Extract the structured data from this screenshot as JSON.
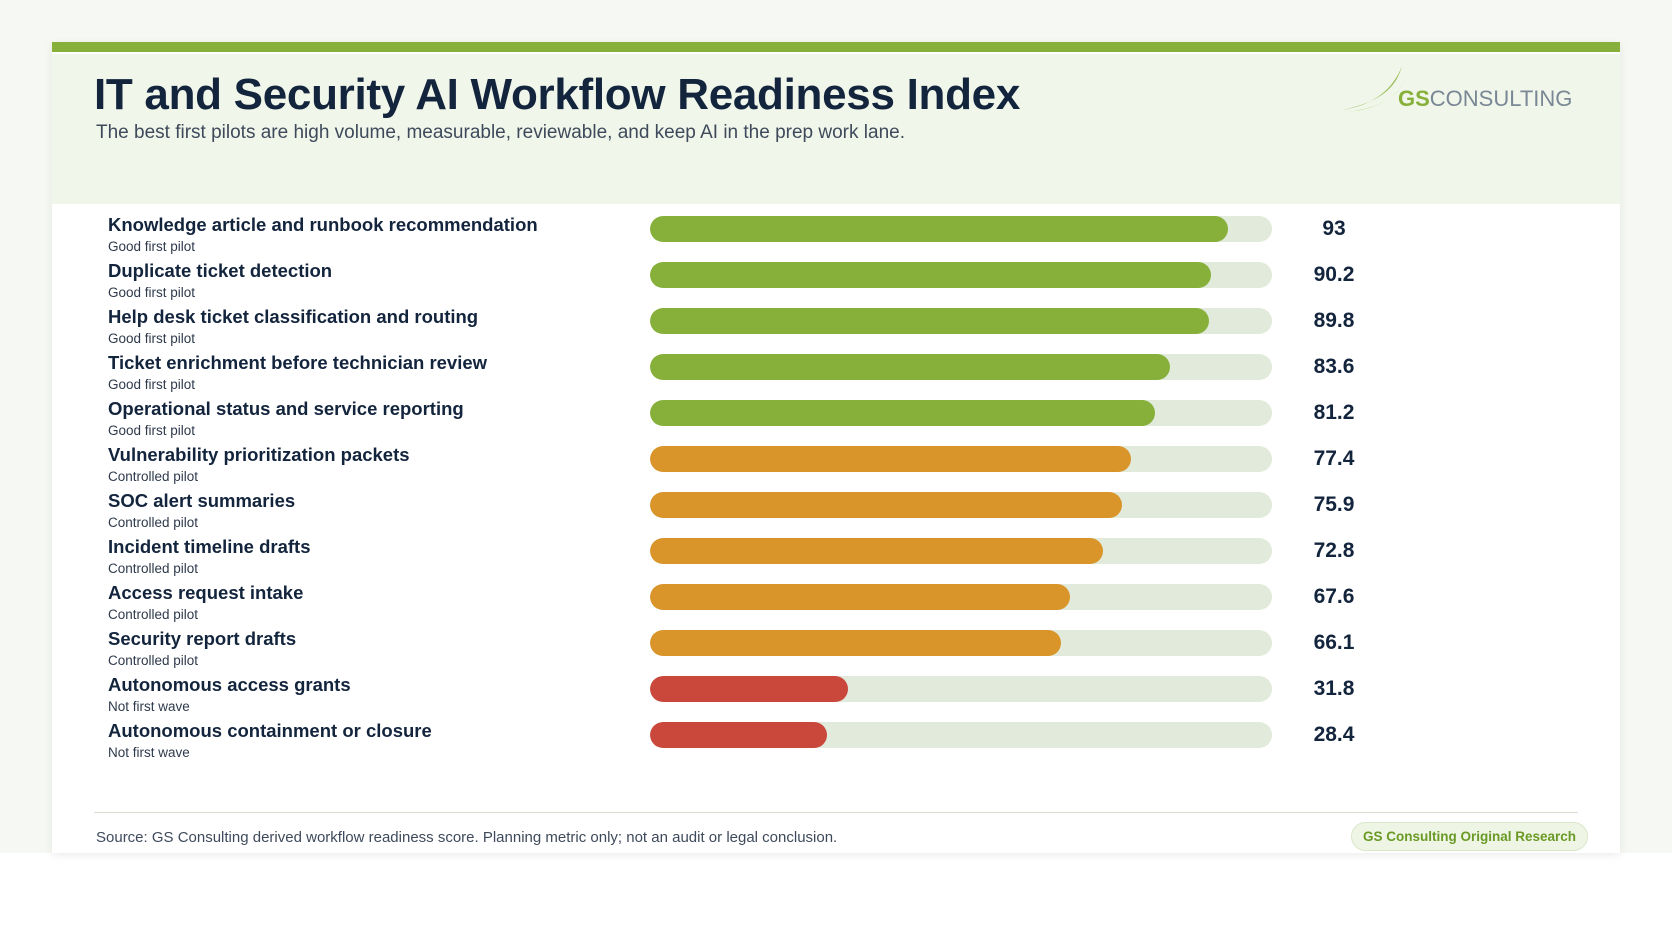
{
  "header": {
    "title": "IT and Security AI Workflow Readiness Index",
    "subtitle": "The best first pilots are high volume, measurable, reviewable, and keep AI in the prep work lane.",
    "logo_text_bold": "GS",
    "logo_text_light": "CONSULTING"
  },
  "colors": {
    "good": "#86b03a",
    "controlled": "#d9942a",
    "not_first": "#c9473b",
    "track": "#e1eadb",
    "accent": "#86b03a"
  },
  "chart_data": {
    "type": "bar",
    "orientation": "horizontal",
    "xlim": [
      0,
      100
    ],
    "categories": [
      "Knowledge article and runbook recommendation",
      "Duplicate ticket detection",
      "Help desk ticket classification and routing",
      "Ticket enrichment before technician review",
      "Operational status and service reporting",
      "Vulnerability prioritization packets",
      "SOC alert summaries",
      "Incident timeline drafts",
      "Access request intake",
      "Security report drafts",
      "Autonomous access grants",
      "Autonomous containment or closure"
    ],
    "values": [
      93,
      90.2,
      89.8,
      83.6,
      81.2,
      77.4,
      75.9,
      72.8,
      67.6,
      66.1,
      31.8,
      28.4
    ],
    "value_labels": [
      "93",
      "90.2",
      "89.8",
      "83.6",
      "81.2",
      "77.4",
      "75.9",
      "72.8",
      "67.6",
      "66.1",
      "31.8",
      "28.4"
    ],
    "groups": [
      "Good first pilot",
      "Good first pilot",
      "Good first pilot",
      "Good first pilot",
      "Good first pilot",
      "Controlled pilot",
      "Controlled pilot",
      "Controlled pilot",
      "Controlled pilot",
      "Controlled pilot",
      "Not first wave",
      "Not first wave"
    ]
  },
  "footer": {
    "source": "Source: GS Consulting derived workflow readiness score. Planning metric only; not an audit or legal conclusion.",
    "badge": "GS Consulting Original Research"
  }
}
